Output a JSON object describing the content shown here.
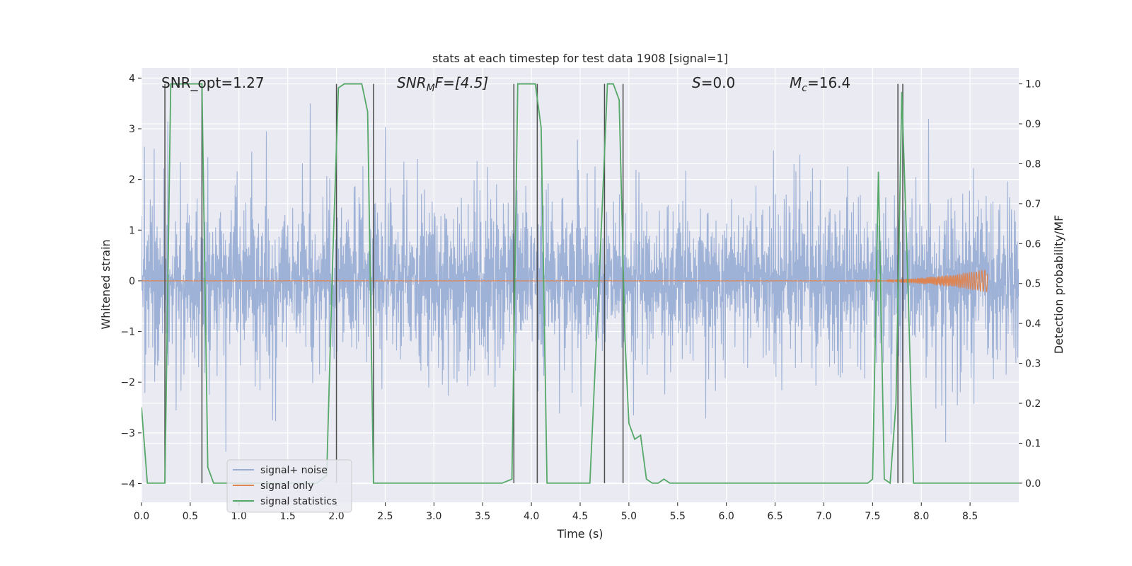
{
  "chart_data": {
    "type": "line",
    "title": "stats at each timestep for test data 1908 [signal=1]",
    "xlabel": "Time (s)",
    "ylabel_left": "Whitened strain",
    "ylabel_right": "Detection probability/MF",
    "xlim": [
      0,
      9.0
    ],
    "ylim_left": [
      -4.37,
      4.2
    ],
    "ylim_right": [
      -0.048,
      1.04
    ],
    "x_ticks": [
      0.0,
      0.5,
      1.0,
      1.5,
      2.0,
      2.5,
      3.0,
      3.5,
      4.0,
      4.5,
      5.0,
      5.5,
      6.0,
      6.5,
      7.0,
      7.5,
      8.0,
      8.5
    ],
    "x_tick_labels": [
      "0.0",
      "0.5",
      "1.0",
      "1.5",
      "2.0",
      "2.5",
      "3.0",
      "3.5",
      "4.0",
      "4.5",
      "5.0",
      "5.5",
      "6.0",
      "6.5",
      "7.0",
      "7.5",
      "8.0",
      "8.5"
    ],
    "y_left_ticks": [
      4,
      3,
      2,
      1,
      0,
      -1,
      -2,
      -3,
      -4
    ],
    "y_left_tick_labels": [
      "4",
      "3",
      "2",
      "1",
      "0",
      "−1",
      "−2",
      "−3",
      "−4"
    ],
    "y_right_ticks": [
      1.0,
      0.9,
      0.8,
      0.7,
      0.6,
      0.5,
      0.4,
      0.3,
      0.2,
      0.1,
      0.0
    ],
    "y_right_tick_labels": [
      "1.0",
      "0.9",
      "0.8",
      "0.7",
      "0.6",
      "0.5",
      "0.4",
      "0.3",
      "0.2",
      "0.1",
      "0.0"
    ],
    "annotations": [
      {
        "id": "snr-opt",
        "text": "SNR_opt=1.27",
        "x": 0.2,
        "y": 3.7
      },
      {
        "id": "snr-mf",
        "text_main": "SNR",
        "text_sub": "M",
        "text_rest": "F=[4.5]",
        "x": 2.6,
        "y": 3.7
      },
      {
        "id": "s-value",
        "text_main": "S",
        "text_rest": "=0.0",
        "x": 5.6,
        "y": 3.7
      },
      {
        "id": "mc-value",
        "text_main": "M",
        "text_sub": "c",
        "text_rest": "=16.4",
        "x": 6.6,
        "y": 3.7
      }
    ],
    "series": [
      {
        "name": "signal+ noise",
        "color": "#9aaed4",
        "axis": "left",
        "style": "noise",
        "x_range": [
          0,
          9.0
        ],
        "samples": 1800,
        "envelope_mean": 1.6,
        "peak_max": 3.5,
        "peak_min": -3.9
      },
      {
        "name": "signal only",
        "color": "#dd8452",
        "axis": "left",
        "style": "chirp",
        "x_range": [
          0,
          8.68
        ],
        "chirp_start": 7.2,
        "chirp_peak_amp": 0.23
      },
      {
        "name": "signal statistics",
        "color": "#55a868",
        "axis": "right",
        "x": [
          0.0,
          0.06,
          0.12,
          0.18,
          0.24,
          0.3,
          0.36,
          0.42,
          0.5,
          0.56,
          0.62,
          0.68,
          0.74,
          0.8,
          0.86,
          0.92,
          0.98,
          1.04,
          1.8,
          1.9,
          1.96,
          2.02,
          2.08,
          2.14,
          2.2,
          2.26,
          2.32,
          2.38,
          2.44,
          2.5,
          2.6,
          2.7,
          3.7,
          3.8,
          3.86,
          3.92,
          3.98,
          4.04,
          4.1,
          4.16,
          4.22,
          4.3,
          4.4,
          4.5,
          4.6,
          4.7,
          4.78,
          4.84,
          4.9,
          4.96,
          5.0,
          5.06,
          5.12,
          5.18,
          5.24,
          5.3,
          5.36,
          5.42,
          5.5,
          5.6,
          7.45,
          7.5,
          7.56,
          7.62,
          7.68,
          7.74,
          7.8,
          7.86,
          7.92,
          8.0,
          8.5,
          9.0
        ],
        "y": [
          0.19,
          0.0,
          0.0,
          0.0,
          0.0,
          1.0,
          1.0,
          1.0,
          1.0,
          1.0,
          1.0,
          0.04,
          0.0,
          0.0,
          0.0,
          0.0,
          0.0,
          0.0,
          0.0,
          0.02,
          0.55,
          0.99,
          1.0,
          1.0,
          1.0,
          1.0,
          0.93,
          0.0,
          0.0,
          0.0,
          0.0,
          0.0,
          0.0,
          0.01,
          1.0,
          1.0,
          1.0,
          1.0,
          0.89,
          0.0,
          0.0,
          0.0,
          0.0,
          0.0,
          0.0,
          0.54,
          1.0,
          1.0,
          0.96,
          0.36,
          0.15,
          0.11,
          0.12,
          0.01,
          0.0,
          0.0,
          0.01,
          0.0,
          0.0,
          0.0,
          0.0,
          0.01,
          0.78,
          0.01,
          0.0,
          0.2,
          0.98,
          0.52,
          0.0,
          0.0,
          0.0,
          0.0
        ]
      }
    ],
    "vertical_lines": [
      0.24,
      0.62,
      2.0,
      2.38,
      3.82,
      4.06,
      4.75,
      4.94,
      7.76,
      7.81
    ],
    "legend": {
      "location": "lower-left",
      "entries": [
        "signal+ noise",
        "signal only",
        "signal statistics"
      ]
    }
  }
}
